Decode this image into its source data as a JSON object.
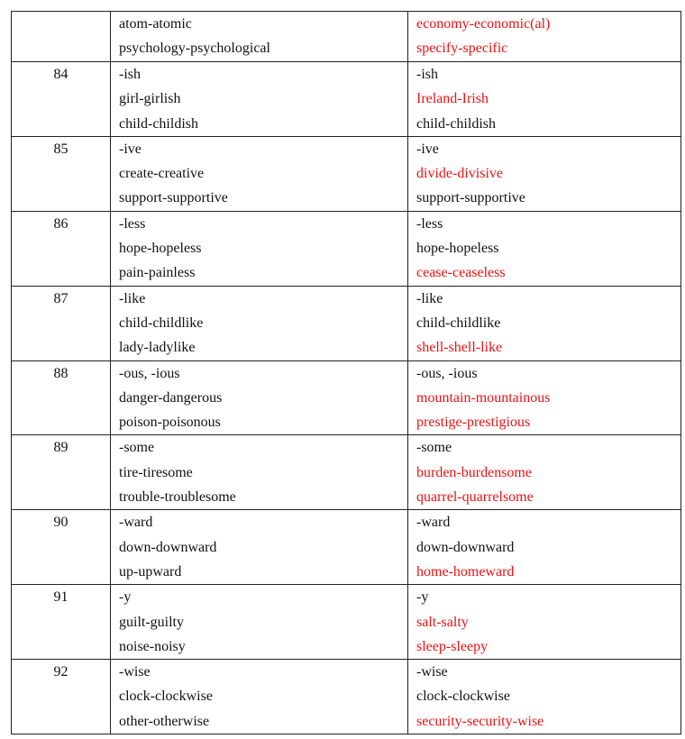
{
  "table": {
    "rows": [
      {
        "num": "",
        "left": [
          "atom-atomic",
          "psychology-psychological"
        ],
        "right": [
          {
            "text": "economy-economic(al)",
            "red": true
          },
          {
            "text": "specify-specific",
            "red": true
          }
        ]
      },
      {
        "num": "84",
        "left": [
          "-ish",
          "girl-girlish",
          "child-childish"
        ],
        "right": [
          {
            "text": "-ish",
            "red": false
          },
          {
            "text": "Ireland-Irish",
            "red": true
          },
          {
            "text": "child-childish",
            "red": false
          }
        ]
      },
      {
        "num": "85",
        "left": [
          "-ive",
          "create-creative",
          "support-supportive"
        ],
        "right": [
          {
            "text": "-ive",
            "red": false
          },
          {
            "text": "divide-divisive",
            "red": true
          },
          {
            "text": "support-supportive",
            "red": false
          }
        ]
      },
      {
        "num": "86",
        "left": [
          "-less",
          "hope-hopeless",
          "pain-painless"
        ],
        "right": [
          {
            "text": "-less",
            "red": false
          },
          {
            "text": "hope-hopeless",
            "red": false
          },
          {
            "text": "cease-ceaseless",
            "red": true
          }
        ]
      },
      {
        "num": "87",
        "left": [
          "-like",
          "child-childlike",
          "lady-ladylike"
        ],
        "right": [
          {
            "text": "-like",
            "red": false
          },
          {
            "text": "child-childlike",
            "red": false
          },
          {
            "text": "shell-shell-like",
            "red": true
          }
        ]
      },
      {
        "num": "88",
        "left": [
          "-ous, -ious",
          "danger-dangerous",
          "poison-poisonous"
        ],
        "right": [
          {
            "text": "-ous, -ious",
            "red": false
          },
          {
            "text": "mountain-mountainous",
            "red": true
          },
          {
            "text": "prestige-prestigious",
            "red": true
          }
        ]
      },
      {
        "num": "89",
        "left": [
          "-some",
          "tire-tiresome",
          "trouble-troublesome"
        ],
        "right": [
          {
            "text": "-some",
            "red": false
          },
          {
            "text": "burden-burdensome",
            "red": true
          },
          {
            "text": "quarrel-quarrelsome",
            "red": true
          }
        ]
      },
      {
        "num": "90",
        "left": [
          "-ward",
          "down-downward",
          "up-upward"
        ],
        "right": [
          {
            "text": "-ward",
            "red": false
          },
          {
            "text": "down-downward",
            "red": false
          },
          {
            "text": "home-homeward",
            "red": true
          }
        ]
      },
      {
        "num": "91",
        "left": [
          "-y",
          "guilt-guilty",
          "noise-noisy"
        ],
        "right": [
          {
            "text": "-y",
            "red": false
          },
          {
            "text": "salt-salty",
            "red": true
          },
          {
            "text": "sleep-sleepy",
            "red": true
          }
        ]
      },
      {
        "num": "92",
        "left": [
          "-wise",
          "clock-clockwise",
          "other-otherwise"
        ],
        "right": [
          {
            "text": "-wise",
            "red": false
          },
          {
            "text": "clock-clockwise",
            "red": false
          },
          {
            "text": "security-security-wise",
            "red": true
          }
        ]
      }
    ]
  },
  "colors": {
    "highlight": "#ee1111",
    "text": "#111111"
  }
}
